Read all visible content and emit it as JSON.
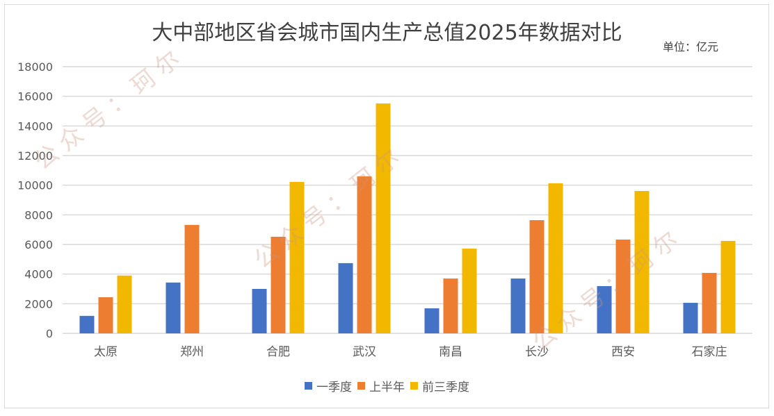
{
  "title": "大中部地区省会城市国内生产总值2025年数据对比",
  "unit_label": "单位：亿元",
  "watermark": "公众号：珂尔",
  "colors": {
    "q1": "#4472C4",
    "h1": "#ED7D31",
    "q3": "#F2B800",
    "grid": "#D9D9D9",
    "axis_text": "#595959"
  },
  "legend": [
    {
      "label": "一季度",
      "color": "#4472C4"
    },
    {
      "label": "上半年",
      "color": "#ED7D31"
    },
    {
      "label": "前三季度",
      "color": "#F2B800"
    }
  ],
  "chart_data": {
    "type": "bar",
    "title": "大中部地区省会城市国内生产总值2025年数据对比",
    "subtitle": "单位：亿元",
    "xlabel": "",
    "ylabel": "",
    "ylim": [
      0,
      18000
    ],
    "yticks": [
      0,
      2000,
      4000,
      6000,
      8000,
      10000,
      12000,
      14000,
      16000,
      18000
    ],
    "grid": true,
    "legend_position": "bottom",
    "categories": [
      "太原",
      "郑州",
      "合肥",
      "武汉",
      "南昌",
      "长沙",
      "西安",
      "石家庄"
    ],
    "series": [
      {
        "name": "一季度",
        "values": [
          1180,
          3430,
          3000,
          4740,
          1690,
          3700,
          3190,
          2060
        ]
      },
      {
        "name": "上半年",
        "values": [
          2440,
          7320,
          6520,
          10600,
          3700,
          7640,
          6330,
          4080
        ]
      },
      {
        "name": "前三季度",
        "values": [
          3900,
          null,
          10220,
          15520,
          5720,
          10130,
          9610,
          6240
        ]
      }
    ]
  }
}
